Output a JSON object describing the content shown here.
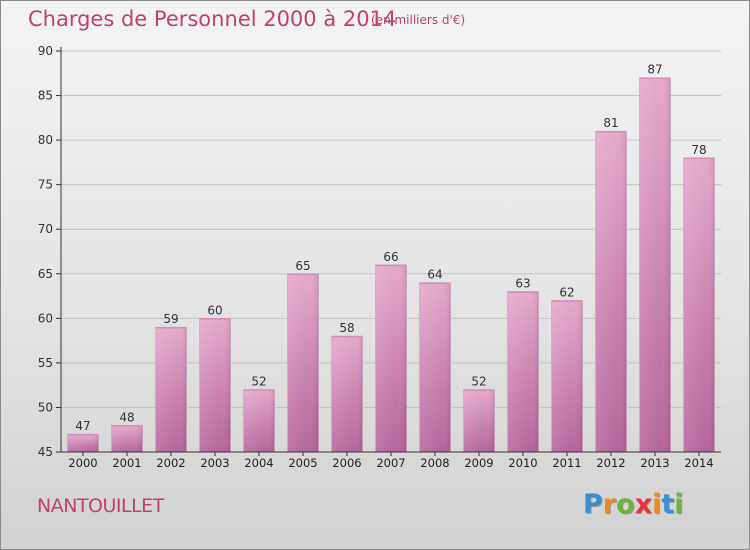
{
  "title": "Charges de Personnel 2000 à 2014",
  "subtitle": "(en milliers d'€)",
  "town": "NANTOUILLET",
  "logo": {
    "letters": [
      "P",
      "r",
      "o",
      "x",
      "i",
      "t",
      "i"
    ],
    "colors": [
      "#3a8fd0",
      "#f08a1c",
      "#6cb33f",
      "#e8343c",
      "#f08a1c",
      "#3a8fd0",
      "#6cb33f"
    ]
  },
  "colors": {
    "accent": "#c0406f",
    "bar_top": "#e6a8cb",
    "bar_bottom": "#b5649a",
    "axis": "#333333"
  },
  "chart_data": {
    "type": "bar",
    "categories": [
      "2000",
      "2001",
      "2002",
      "2003",
      "2004",
      "2005",
      "2006",
      "2007",
      "2008",
      "2009",
      "2010",
      "2011",
      "2012",
      "2013",
      "2014"
    ],
    "values": [
      47,
      48,
      59,
      60,
      52,
      65,
      58,
      66,
      64,
      52,
      63,
      62,
      81,
      87,
      78
    ],
    "ylim": [
      45,
      90
    ],
    "yticks": [
      45,
      50,
      55,
      60,
      65,
      70,
      75,
      80,
      85,
      90
    ],
    "grid": true,
    "data_labels": true
  }
}
